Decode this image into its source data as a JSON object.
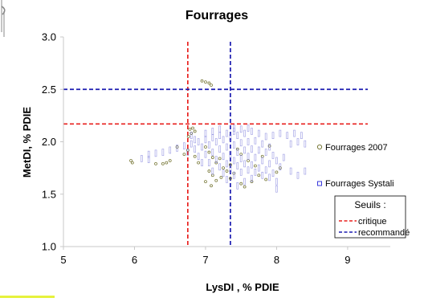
{
  "chart_data": {
    "type": "scatter",
    "title": "Fourrages",
    "xlabel": "LysDI , % PDIE",
    "ylabel": "MetDI, % PDIE",
    "xlim": [
      5,
      9.3
    ],
    "ylim": [
      1.0,
      3.0
    ],
    "xticks": [
      "5",
      "6",
      "7",
      "8",
      "9"
    ],
    "yticks": [
      "1.0",
      "1.5",
      "2.0",
      "2.5",
      "3.0"
    ],
    "grid": false,
    "series": [
      {
        "name": "Fourrages 2007",
        "marker": "circle",
        "color": "#7a7a3a",
        "points": [
          [
            6.95,
            2.58
          ],
          [
            7.0,
            2.57
          ],
          [
            7.05,
            2.56
          ],
          [
            7.08,
            2.54
          ],
          [
            6.78,
            2.12
          ],
          [
            6.8,
            2.08
          ],
          [
            6.82,
            2.13
          ],
          [
            6.85,
            2.1
          ],
          [
            6.76,
            2.05
          ],
          [
            7.0,
            1.95
          ],
          [
            7.05,
            1.9
          ],
          [
            7.1,
            1.85
          ],
          [
            7.15,
            1.8
          ],
          [
            7.2,
            1.84
          ],
          [
            7.25,
            1.75
          ],
          [
            7.3,
            1.72
          ],
          [
            7.05,
            1.72
          ],
          [
            7.1,
            1.68
          ],
          [
            7.15,
            1.63
          ],
          [
            7.0,
            1.62
          ],
          [
            7.08,
            1.58
          ],
          [
            7.22,
            1.66
          ],
          [
            7.35,
            1.78
          ],
          [
            7.4,
            1.7
          ],
          [
            7.45,
            1.93
          ],
          [
            7.5,
            1.88
          ],
          [
            6.9,
            1.8
          ],
          [
            6.85,
            1.86
          ],
          [
            6.75,
            1.92
          ],
          [
            6.7,
            1.88
          ],
          [
            6.6,
            1.95
          ],
          [
            6.5,
            1.82
          ],
          [
            6.45,
            1.8
          ],
          [
            6.4,
            1.79
          ],
          [
            6.3,
            1.79
          ],
          [
            5.95,
            1.82
          ],
          [
            5.97,
            1.8
          ],
          [
            7.6,
            1.82
          ],
          [
            7.7,
            1.77
          ],
          [
            7.8,
            1.86
          ],
          [
            7.9,
            1.96
          ],
          [
            8.05,
            1.75
          ],
          [
            8.0,
            1.71
          ],
          [
            7.65,
            1.62
          ],
          [
            7.75,
            1.68
          ],
          [
            7.85,
            1.64
          ],
          [
            7.55,
            1.57
          ],
          [
            7.5,
            1.6
          ],
          [
            7.35,
            1.65
          ]
        ]
      },
      {
        "name": "Fourrages Systali",
        "marker": "square",
        "color": "#7f7fdc",
        "points": [
          [
            6.2,
            1.88
          ],
          [
            6.3,
            1.89
          ],
          [
            6.4,
            1.9
          ],
          [
            6.5,
            1.92
          ],
          [
            6.6,
            1.94
          ],
          [
            6.7,
            1.96
          ],
          [
            6.8,
            1.98
          ],
          [
            6.9,
            2.0
          ],
          [
            7.0,
            2.02
          ],
          [
            7.1,
            2.04
          ],
          [
            7.2,
            2.06
          ],
          [
            7.3,
            2.08
          ],
          [
            7.4,
            2.1
          ],
          [
            7.5,
            2.12
          ],
          [
            7.6,
            2.13
          ],
          [
            6.75,
            1.9
          ],
          [
            6.85,
            1.93
          ],
          [
            6.95,
            1.95
          ],
          [
            7.05,
            1.97
          ],
          [
            7.15,
            2.0
          ],
          [
            7.25,
            2.02
          ],
          [
            7.35,
            2.04
          ],
          [
            7.45,
            2.06
          ],
          [
            7.55,
            2.08
          ],
          [
            7.65,
            2.1
          ],
          [
            7.75,
            2.08
          ],
          [
            7.85,
            2.05
          ],
          [
            7.95,
            2.06
          ],
          [
            8.05,
            2.08
          ],
          [
            8.15,
            2.06
          ],
          [
            7.0,
            1.88
          ],
          [
            7.1,
            1.9
          ],
          [
            7.2,
            1.93
          ],
          [
            7.3,
            1.95
          ],
          [
            7.4,
            1.97
          ],
          [
            7.5,
            1.99
          ],
          [
            7.6,
            2.0
          ],
          [
            7.7,
            2.01
          ],
          [
            7.8,
            1.98
          ],
          [
            7.9,
            1.95
          ],
          [
            7.05,
            1.8
          ],
          [
            7.15,
            1.83
          ],
          [
            7.25,
            1.86
          ],
          [
            7.35,
            1.88
          ],
          [
            7.45,
            1.9
          ],
          [
            7.55,
            1.92
          ],
          [
            7.65,
            1.93
          ],
          [
            7.75,
            1.92
          ],
          [
            7.85,
            1.9
          ],
          [
            7.95,
            1.87
          ],
          [
            7.1,
            1.72
          ],
          [
            7.2,
            1.76
          ],
          [
            7.3,
            1.79
          ],
          [
            7.4,
            1.82
          ],
          [
            7.5,
            1.84
          ],
          [
            7.6,
            1.86
          ],
          [
            7.7,
            1.85
          ],
          [
            7.8,
            1.82
          ],
          [
            7.9,
            1.79
          ],
          [
            8.0,
            1.82
          ],
          [
            7.25,
            1.7
          ],
          [
            7.35,
            1.74
          ],
          [
            7.45,
            1.77
          ],
          [
            7.55,
            1.79
          ],
          [
            7.65,
            1.78
          ],
          [
            7.75,
            1.75
          ],
          [
            7.85,
            1.73
          ],
          [
            7.95,
            1.7
          ],
          [
            8.05,
            1.76
          ],
          [
            8.1,
            1.85
          ],
          [
            7.3,
            1.64
          ],
          [
            7.4,
            1.68
          ],
          [
            7.5,
            1.71
          ],
          [
            7.6,
            1.73
          ],
          [
            7.7,
            1.71
          ],
          [
            7.8,
            1.68
          ],
          [
            7.9,
            1.66
          ],
          [
            7.45,
            1.58
          ],
          [
            7.55,
            1.62
          ],
          [
            7.65,
            1.65
          ],
          [
            8.0,
            1.62
          ],
          [
            8.0,
            1.55
          ],
          [
            8.2,
            1.72
          ],
          [
            8.3,
            1.68
          ],
          [
            8.4,
            1.72
          ],
          [
            6.1,
            1.84
          ],
          [
            6.2,
            1.83
          ],
          [
            6.9,
            1.86
          ],
          [
            6.95,
            1.8
          ],
          [
            6.85,
            2.02
          ],
          [
            6.8,
            2.06
          ],
          [
            7.0,
            2.08
          ],
          [
            7.1,
            2.1
          ],
          [
            7.2,
            2.12
          ],
          [
            7.4,
            2.13
          ],
          [
            8.2,
            1.98
          ],
          [
            8.3,
            2.0
          ],
          [
            8.4,
            1.98
          ],
          [
            8.25,
            2.08
          ],
          [
            8.35,
            2.06
          ]
        ]
      }
    ],
    "thresholds": [
      {
        "name": "critique",
        "color": "#e8201e",
        "axis": "x",
        "value": 6.75
      },
      {
        "name": "critique",
        "color": "#e8201e",
        "axis": "y",
        "value": 2.17
      },
      {
        "name": "recommandé",
        "color": "#1c1cb0",
        "axis": "x",
        "value": 7.35
      },
      {
        "name": "recommandé",
        "color": "#1c1cb0",
        "axis": "y",
        "value": 2.5
      }
    ],
    "legend": {
      "series_2007": "Fourrages 2007",
      "series_systali": "Fourrages Systali",
      "box_title": "Seuils :",
      "critique": "critique",
      "recommande": "recommandé"
    }
  }
}
